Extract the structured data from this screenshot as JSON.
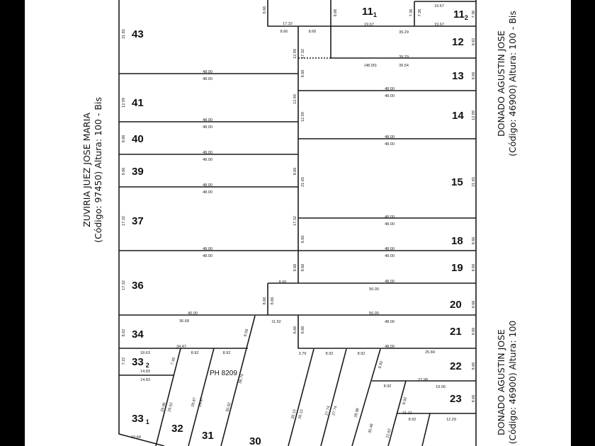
{
  "streets": {
    "left": {
      "name": "ZUVIRIA JUEZ JOSE MARIA",
      "info": "(Código: 97450) Altura: 100 - Bis"
    },
    "right_top": {
      "name": "DONADO AGUSTIN JOSE",
      "info": "(Código: 46900) Altura: 100 - Bis"
    },
    "right_bottom": {
      "name": "DONADO AGUSTIN JOSE",
      "info": "(Código: 46900) Altura: 100"
    }
  },
  "lots": {
    "l43": "43",
    "l41": "41",
    "l40": "40",
    "l39": "39",
    "l37": "37",
    "l36": "36",
    "l34": "34",
    "l33_2": "33",
    "l33_2_sub": "2",
    "l33_1": "33",
    "l33_1_sub": "1",
    "l32": "32",
    "l31": "31",
    "l30": "30",
    "l11_1": "11",
    "l11_1_sub": "1",
    "l11_2": "11",
    "l11_2_sub": "2",
    "l12": "12",
    "l13": "13",
    "l14": "14",
    "l15": "15",
    "l18": "18",
    "l19": "19",
    "l20": "20",
    "l21": "21",
    "l22": "22",
    "l23": "23"
  },
  "ph_label": "PH 8209",
  "measurements": [
    "8.66",
    "8.66",
    "17.32",
    "19.67",
    "19.67",
    "19.67",
    "39.29",
    "39.29",
    "39.54",
    "(48.00)",
    "48.00",
    "48.00",
    "48.00",
    "48.00",
    "48.00",
    "48.00",
    "48.00",
    "48.00",
    "48.00",
    "48.00",
    "48.00",
    "48.00",
    "48.00",
    "48.00",
    "48.00",
    "48.00",
    "48.00",
    "48.00",
    "8.00",
    "48.00",
    "56.00",
    "40.00",
    "36.68",
    "11.52",
    "56.00",
    "48.00",
    "48.00",
    "34.47",
    "18.63",
    "8.92",
    "8.92",
    "3.79",
    "8.92",
    "8.92",
    "25.84",
    "14.83",
    "14.83",
    "27.98",
    "8.92",
    "19.06",
    "21.21",
    "8.92",
    "12.29",
    "10.64",
    "21.65",
    "12.99",
    "8.66",
    "8.66",
    "17.32",
    "17.32",
    "8.62",
    "7.22",
    "8.62",
    "8.66",
    "12.99",
    "21.65",
    "8.66",
    "8.66",
    "8.66",
    "8.66",
    "8.66",
    "8.66",
    "12.99",
    "17.32",
    "8.66",
    "12.99",
    "12.99",
    "8.66",
    "21.65",
    "17.32",
    "8.66",
    "8.66",
    "8.66",
    "8.66",
    "8.66",
    "7.36",
    "7.36",
    "7.36",
    "8.66",
    "8.66",
    "8.66",
    "8.66",
    "8.09",
    "7.45",
    "8.92",
    "8.92",
    "38.74",
    "30.92",
    "29.87",
    "29.87",
    "29.96",
    "29.52",
    "28.98",
    "30.48",
    "22.62",
    "27.74",
    "27.74",
    "26.10",
    "26.10"
  ]
}
